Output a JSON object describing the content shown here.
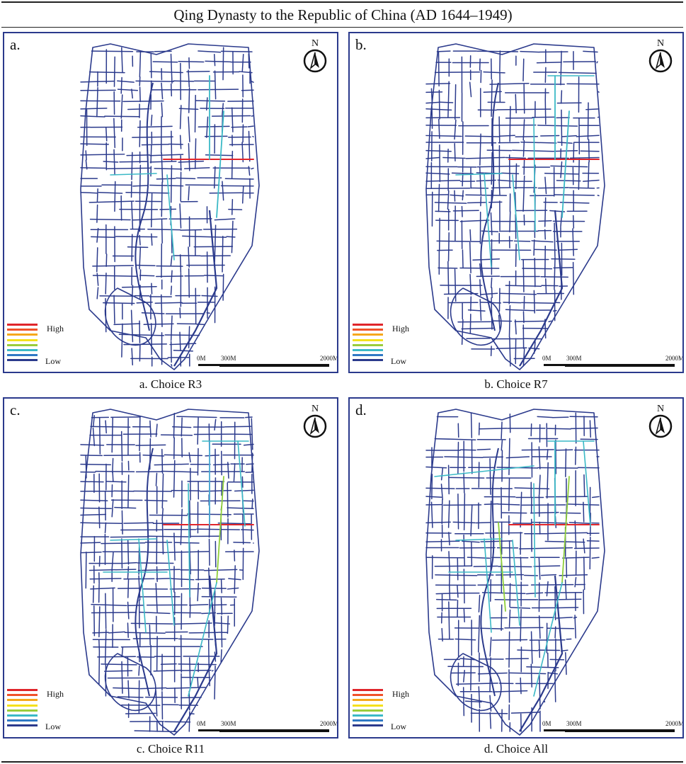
{
  "figure": {
    "title": "Qing Dynasty to the Republic of China (AD 1644–1949)"
  },
  "panels": [
    {
      "letter": "a.",
      "caption": "a. Choice R3"
    },
    {
      "letter": "b.",
      "caption": "b. Choice R7"
    },
    {
      "letter": "c.",
      "caption": "c. Choice R11"
    },
    {
      "letter": "d.",
      "caption": "d. Choice All"
    }
  ],
  "north_arrow": {
    "label": "N"
  },
  "legend": {
    "high_label": "High",
    "low_label": "Low",
    "colors": [
      "#e0252b",
      "#f0522a",
      "#f6a81c",
      "#f5e11d",
      "#9acd3b",
      "#3bb9c6",
      "#2f78c4",
      "#2b3a8c"
    ]
  },
  "scale_bar": {
    "labels": [
      "0M",
      "300M",
      "2000M"
    ]
  },
  "colors": {
    "road_low": "#2b3a8c",
    "road_mid": "#3bb9c6",
    "road_green": "#8fcf3a",
    "road_high": "#e0252b",
    "frame": "#2b3a8c"
  }
}
